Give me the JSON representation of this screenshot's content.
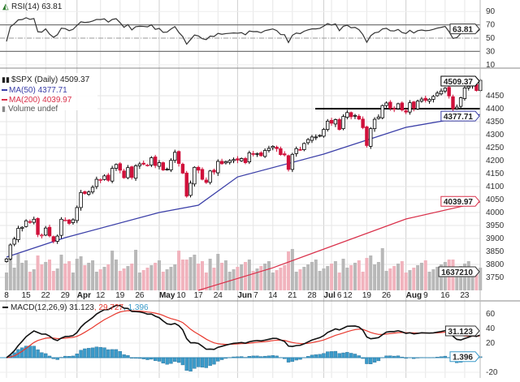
{
  "rsi": {
    "label": "RSI(14)",
    "value": "63.81",
    "ticks": [
      90,
      70,
      50,
      30,
      10
    ],
    "overbought": 70,
    "oversold": 30,
    "mid": 50
  },
  "price": {
    "symbol_label": "$SPX (Daily)",
    "value": "4509.37",
    "ma50_label": "MA(50)",
    "ma50_value": "4377.71",
    "ma200_label": "MA(200)",
    "ma200_value": "4039.97",
    "volume_label": "Volume undef",
    "volume_tag": "1637210",
    "ticks": [
      4450,
      4400,
      4350,
      4300,
      4250,
      4200,
      4150,
      4100,
      4050,
      4000,
      3950,
      3900,
      3850,
      3800,
      3750
    ],
    "resistance_level": 4400
  },
  "macd": {
    "label": "MACD(12,26,9)",
    "macd_value": "31.123",
    "signal_value": "29.727",
    "hist_value": "1.396",
    "ticks": [
      60,
      40,
      20,
      -20
    ]
  },
  "colors": {
    "up": "#000000",
    "down": "#d0103a",
    "ma50": "#3b3fa8",
    "ma200": "#d9304a",
    "signal": "#e8392e",
    "hist": "#3a9ac9",
    "vol_up": "#b8b8b8",
    "vol_down": "#f1b3bd"
  },
  "chart_data": {
    "type": "candlestick",
    "x_ticks": [
      {
        "label": "8",
        "date": "Mar 8"
      },
      {
        "label": "15",
        "date": "Mar 15"
      },
      {
        "label": "22",
        "date": "Mar 22"
      },
      {
        "label": "29",
        "date": "Mar 29"
      },
      {
        "label": "Apr",
        "date": "Apr 1",
        "bold": true
      },
      {
        "label": "12",
        "date": "Apr 12"
      },
      {
        "label": "19",
        "date": "Apr 19"
      },
      {
        "label": "26",
        "date": "Apr 26"
      },
      {
        "label": "May",
        "date": "May 3",
        "bold": true
      },
      {
        "label": "10",
        "date": "May 10"
      },
      {
        "label": "17",
        "date": "May 17"
      },
      {
        "label": "24",
        "date": "May 24"
      },
      {
        "label": "Jun",
        "date": "Jun 1",
        "bold": true
      },
      {
        "label": "7",
        "date": "Jun 7"
      },
      {
        "label": "14",
        "date": "Jun 14"
      },
      {
        "label": "21",
        "date": "Jun 21"
      },
      {
        "label": "28",
        "date": "Jun 28"
      },
      {
        "label": "Jul",
        "date": "Jul 1",
        "bold": true
      },
      {
        "label": "6",
        "date": "Jul 6"
      },
      {
        "label": "12",
        "date": "Jul 12"
      },
      {
        "label": "19",
        "date": "Jul 19"
      },
      {
        "label": "26",
        "date": "Jul 26"
      },
      {
        "label": "Aug",
        "date": "Aug 2",
        "bold": true
      },
      {
        "label": "9",
        "date": "Aug 9"
      },
      {
        "label": "16",
        "date": "Aug 16"
      },
      {
        "label": "23",
        "date": "Aug 23"
      }
    ],
    "ylim": [
      3700,
      4560
    ],
    "closes": [
      [
        "Mar 8",
        3821
      ],
      [
        "Mar 9",
        3875
      ],
      [
        "Mar 10",
        3898
      ],
      [
        "Mar 11",
        3939
      ],
      [
        "Mar 12",
        3943
      ],
      [
        "Mar 15",
        3968
      ],
      [
        "Mar 16",
        3962
      ],
      [
        "Mar 17",
        3974
      ],
      [
        "Mar 18",
        3915
      ],
      [
        "Mar 19",
        3913
      ],
      [
        "Mar 22",
        3940
      ],
      [
        "Mar 23",
        3910
      ],
      [
        "Mar 24",
        3889
      ],
      [
        "Mar 25",
        3909
      ],
      [
        "Mar 26",
        3974
      ],
      [
        "Mar 29",
        3971
      ],
      [
        "Mar 30",
        3958
      ],
      [
        "Mar 31",
        3972
      ],
      [
        "Apr 1",
        4019
      ],
      [
        "Apr 5",
        4077
      ],
      [
        "Apr 6",
        4073
      ],
      [
        "Apr 7",
        4079
      ],
      [
        "Apr 8",
        4097
      ],
      [
        "Apr 9",
        4128
      ],
      [
        "Apr 12",
        4127
      ],
      [
        "Apr 13",
        4141
      ],
      [
        "Apr 14",
        4124
      ],
      [
        "Apr 15",
        4170
      ],
      [
        "Apr 16",
        4185
      ],
      [
        "Apr 19",
        4163
      ],
      [
        "Apr 20",
        4134
      ],
      [
        "Apr 21",
        4173
      ],
      [
        "Apr 22",
        4135
      ],
      [
        "Apr 23",
        4180
      ],
      [
        "Apr 26",
        4187
      ],
      [
        "Apr 27",
        4186
      ],
      [
        "Apr 28",
        4183
      ],
      [
        "Apr 29",
        4211
      ],
      [
        "Apr 30",
        4181
      ],
      [
        "May 3",
        4192
      ],
      [
        "May 4",
        4164
      ],
      [
        "May 5",
        4167
      ],
      [
        "May 6",
        4201
      ],
      [
        "May 7",
        4232
      ],
      [
        "May 10",
        4189
      ],
      [
        "May 11",
        4152
      ],
      [
        "May 12",
        4063
      ],
      [
        "May 13",
        4113
      ],
      [
        "May 14",
        4174
      ],
      [
        "May 17",
        4163
      ],
      [
        "May 18",
        4128
      ],
      [
        "May 19",
        4116
      ],
      [
        "May 20",
        4160
      ],
      [
        "May 21",
        4156
      ],
      [
        "May 24",
        4197
      ],
      [
        "May 25",
        4188
      ],
      [
        "May 26",
        4196
      ],
      [
        "May 27",
        4200
      ],
      [
        "May 28",
        4204
      ],
      [
        "Jun 1",
        4202
      ],
      [
        "Jun 2",
        4208
      ],
      [
        "Jun 3",
        4192
      ],
      [
        "Jun 4",
        4230
      ],
      [
        "Jun 7",
        4226
      ],
      [
        "Jun 8",
        4227
      ],
      [
        "Jun 9",
        4219
      ],
      [
        "Jun 10",
        4239
      ],
      [
        "Jun 11",
        4247
      ],
      [
        "Jun 14",
        4255
      ],
      [
        "Jun 15",
        4246
      ],
      [
        "Jun 16",
        4223
      ],
      [
        "Jun 17",
        4222
      ],
      [
        "Jun 18",
        4166
      ],
      [
        "Jun 21",
        4224
      ],
      [
        "Jun 22",
        4246
      ],
      [
        "Jun 23",
        4242
      ],
      [
        "Jun 24",
        4266
      ],
      [
        "Jun 25",
        4281
      ],
      [
        "Jun 28",
        4291
      ],
      [
        "Jun 29",
        4291
      ],
      [
        "Jun 30",
        4297
      ],
      [
        "Jul 1",
        4320
      ],
      [
        "Jul 2",
        4352
      ],
      [
        "Jul 6",
        4344
      ],
      [
        "Jul 7",
        4358
      ],
      [
        "Jul 8",
        4320
      ],
      [
        "Jul 9",
        4370
      ],
      [
        "Jul 12",
        4385
      ],
      [
        "Jul 13",
        4369
      ],
      [
        "Jul 14",
        4374
      ],
      [
        "Jul 15",
        4360
      ],
      [
        "Jul 16",
        4327
      ],
      [
        "Jul 19",
        4258
      ],
      [
        "Jul 20",
        4323
      ],
      [
        "Jul 21",
        4359
      ],
      [
        "Jul 22",
        4368
      ],
      [
        "Jul 23",
        4412
      ],
      [
        "Jul 26",
        4422
      ],
      [
        "Jul 27",
        4402
      ],
      [
        "Jul 28",
        4400
      ],
      [
        "Jul 29",
        4419
      ],
      [
        "Jul 30",
        4395
      ],
      [
        "Aug 2",
        4387
      ],
      [
        "Aug 3",
        4423
      ],
      [
        "Aug 4",
        4402
      ],
      [
        "Aug 5",
        4429
      ],
      [
        "Aug 6",
        4437
      ],
      [
        "Aug 9",
        4432
      ],
      [
        "Aug 10",
        4436
      ],
      [
        "Aug 11",
        4447
      ],
      [
        "Aug 12",
        4460
      ],
      [
        "Aug 13",
        4468
      ],
      [
        "Aug 16",
        4479
      ],
      [
        "Aug 17",
        4449
      ],
      [
        "Aug 18",
        4400
      ],
      [
        "Aug 19",
        4406
      ],
      [
        "Aug 20",
        4442
      ],
      [
        "Aug 23",
        4480
      ],
      [
        "Aug 24",
        4486
      ],
      [
        "Aug 25",
        4496
      ],
      [
        "Aug 26",
        4470
      ],
      [
        "Aug 27",
        4509.37
      ]
    ],
    "ma50": [
      [
        "Mar 8",
        3828
      ],
      [
        "Mar 29",
        3903
      ],
      [
        "May 3",
        4000
      ],
      [
        "May 17",
        4028
      ],
      [
        "Jun 1",
        4137
      ],
      [
        "Jul 1",
        4225
      ],
      [
        "Aug 2",
        4328
      ],
      [
        "Aug 27",
        4377.71
      ]
    ],
    "ma200": [
      [
        "May 17",
        3700
      ],
      [
        "Jun 14",
        3787
      ],
      [
        "Aug 2",
        3975
      ],
      [
        "Aug 27",
        4039.97
      ]
    ]
  }
}
